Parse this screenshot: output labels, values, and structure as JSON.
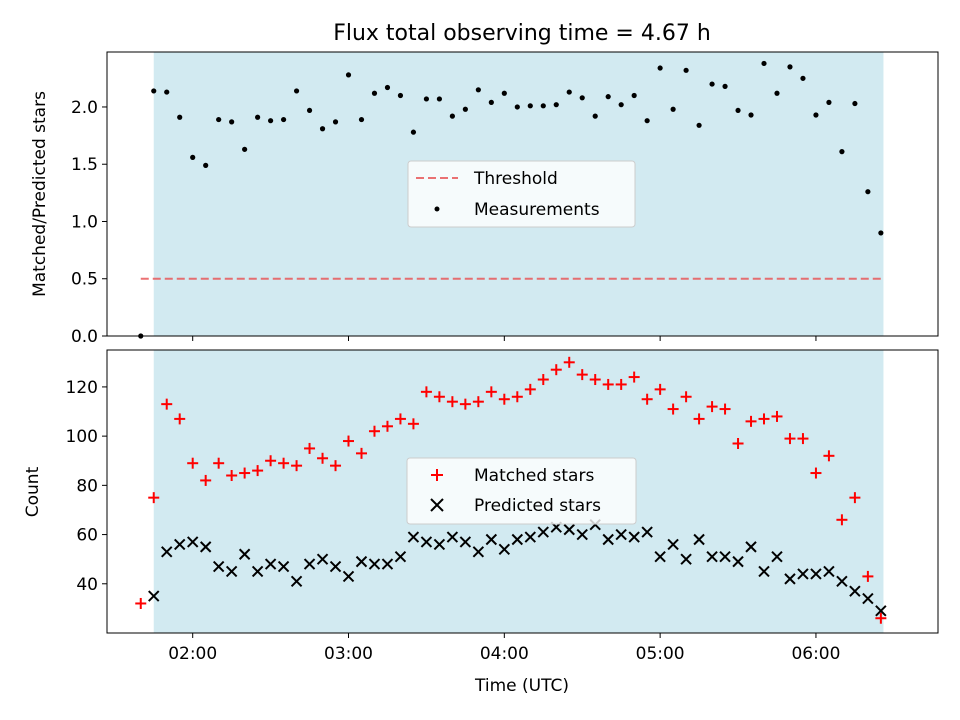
{
  "chart_data": [
    {
      "type": "scatter",
      "title": "Flux total observing time = 4.67 h",
      "xlabel": "",
      "ylabel": "Matched/Predicted stars",
      "xlim": [
        "01:27",
        "06:47"
      ],
      "ylim": [
        0,
        2.48
      ],
      "yticks": [
        0.0,
        0.5,
        1.0,
        1.5,
        2.0
      ],
      "yticklabels": [
        "0.0",
        "0.5",
        "1.0",
        "1.5",
        "2.0"
      ],
      "shaded_interval": [
        "01:45",
        "06:26"
      ],
      "shade_color": "#add8e6",
      "threshold": {
        "name": "Threshold",
        "value": 0.5,
        "x_range": [
          "01:40",
          "06:26"
        ],
        "color": "#e8585b"
      },
      "legend": {
        "entries": [
          "Threshold",
          "Measurements"
        ],
        "placement": "center"
      },
      "series": [
        {
          "name": "Measurements",
          "color": "#000000",
          "marker": "dot",
          "x": [
            "01:40",
            "01:45",
            "01:50",
            "01:55",
            "02:00",
            "02:05",
            "02:10",
            "02:15",
            "02:20",
            "02:25",
            "02:30",
            "02:35",
            "02:40",
            "02:45",
            "02:50",
            "02:55",
            "03:00",
            "03:05",
            "03:10",
            "03:15",
            "03:20",
            "03:25",
            "03:30",
            "03:35",
            "03:40",
            "03:45",
            "03:50",
            "03:55",
            "04:00",
            "04:05",
            "04:10",
            "04:15",
            "04:20",
            "04:25",
            "04:30",
            "04:35",
            "04:40",
            "04:45",
            "04:50",
            "04:55",
            "05:00",
            "05:05",
            "05:10",
            "05:15",
            "05:20",
            "05:25",
            "05:30",
            "05:35",
            "05:40",
            "05:45",
            "05:50",
            "05:55",
            "06:00",
            "06:05",
            "06:10",
            "06:15",
            "06:20",
            "06:25"
          ],
          "y": [
            0.0,
            2.14,
            2.13,
            1.91,
            1.56,
            1.49,
            1.89,
            1.87,
            1.63,
            1.91,
            1.88,
            1.89,
            2.14,
            1.97,
            1.81,
            1.87,
            2.28,
            1.89,
            2.12,
            2.17,
            2.1,
            1.78,
            2.07,
            2.07,
            1.92,
            1.98,
            2.15,
            2.04,
            2.12,
            2.0,
            2.01,
            2.01,
            2.02,
            2.13,
            2.08,
            1.92,
            2.09,
            2.02,
            2.1,
            1.88,
            2.34,
            1.98,
            2.32,
            1.84,
            2.2,
            2.18,
            1.97,
            1.93,
            2.38,
            2.12,
            2.35,
            2.25,
            1.93,
            2.04,
            1.61,
            2.03,
            1.26,
            0.9
          ]
        }
      ]
    },
    {
      "type": "scatter",
      "title": "",
      "xlabel": "Time (UTC)",
      "ylabel": "Count",
      "xlim": [
        "01:27",
        "06:47"
      ],
      "xticklabels": [
        "02:00",
        "03:00",
        "04:00",
        "05:00",
        "06:00"
      ],
      "ylim": [
        20,
        135
      ],
      "yticks": [
        40,
        60,
        80,
        100,
        120
      ],
      "yticklabels": [
        "40",
        "60",
        "80",
        "100",
        "120"
      ],
      "shaded_interval": [
        "01:45",
        "06:26"
      ],
      "shade_color": "#add8e6",
      "legend": {
        "entries": [
          "Matched stars",
          "Predicted stars"
        ],
        "placement": "center"
      },
      "series": [
        {
          "name": "Matched stars",
          "color": "#ff0000",
          "marker": "plus",
          "x": [
            "01:40",
            "01:45",
            "01:50",
            "01:55",
            "02:00",
            "02:05",
            "02:10",
            "02:15",
            "02:20",
            "02:25",
            "02:30",
            "02:35",
            "02:40",
            "02:45",
            "02:50",
            "02:55",
            "03:00",
            "03:05",
            "03:10",
            "03:15",
            "03:20",
            "03:25",
            "03:30",
            "03:35",
            "03:40",
            "03:45",
            "03:50",
            "03:55",
            "04:00",
            "04:05",
            "04:10",
            "04:15",
            "04:20",
            "04:25",
            "04:30",
            "04:35",
            "04:40",
            "04:45",
            "04:50",
            "04:55",
            "05:00",
            "05:05",
            "05:10",
            "05:15",
            "05:20",
            "05:25",
            "05:30",
            "05:35",
            "05:40",
            "05:45",
            "05:50",
            "05:55",
            "06:00",
            "06:05",
            "06:10",
            "06:15",
            "06:20",
            "06:25"
          ],
          "y": [
            32,
            75,
            113,
            107,
            89,
            82,
            89,
            84,
            85,
            86,
            90,
            89,
            88,
            95,
            91,
            88,
            98,
            93,
            102,
            104,
            107,
            105,
            118,
            116,
            114,
            113,
            114,
            118,
            115,
            116,
            119,
            123,
            127,
            130,
            125,
            123,
            121,
            121,
            124,
            115,
            119,
            111,
            116,
            107,
            112,
            111,
            97,
            106,
            107,
            108,
            99,
            99,
            85,
            92,
            66,
            75,
            43,
            26
          ]
        },
        {
          "name": "Predicted stars",
          "color": "#000000",
          "marker": "x",
          "x": [
            "01:45",
            "01:50",
            "01:55",
            "02:00",
            "02:05",
            "02:10",
            "02:15",
            "02:20",
            "02:25",
            "02:30",
            "02:35",
            "02:40",
            "02:45",
            "02:50",
            "02:55",
            "03:00",
            "03:05",
            "03:10",
            "03:15",
            "03:20",
            "03:25",
            "03:30",
            "03:35",
            "03:40",
            "03:45",
            "03:50",
            "03:55",
            "04:00",
            "04:05",
            "04:10",
            "04:15",
            "04:20",
            "04:25",
            "04:30",
            "04:35",
            "04:40",
            "04:45",
            "04:50",
            "04:55",
            "05:00",
            "05:05",
            "05:10",
            "05:15",
            "05:20",
            "05:25",
            "05:30",
            "05:35",
            "05:40",
            "05:45",
            "05:50",
            "05:55",
            "06:00",
            "06:05",
            "06:10",
            "06:15",
            "06:20",
            "06:25"
          ],
          "y": [
            35,
            53,
            56,
            57,
            55,
            47,
            45,
            52,
            45,
            48,
            47,
            41,
            48,
            50,
            47,
            43,
            49,
            48,
            48,
            51,
            59,
            57,
            56,
            59,
            57,
            53,
            58,
            54,
            58,
            59,
            61,
            63,
            62,
            60,
            64,
            58,
            60,
            59,
            61,
            51,
            56,
            50,
            58,
            51,
            51,
            49,
            55,
            45,
            51,
            42,
            44,
            44,
            45,
            41,
            37,
            34,
            29
          ]
        }
      ]
    }
  ]
}
